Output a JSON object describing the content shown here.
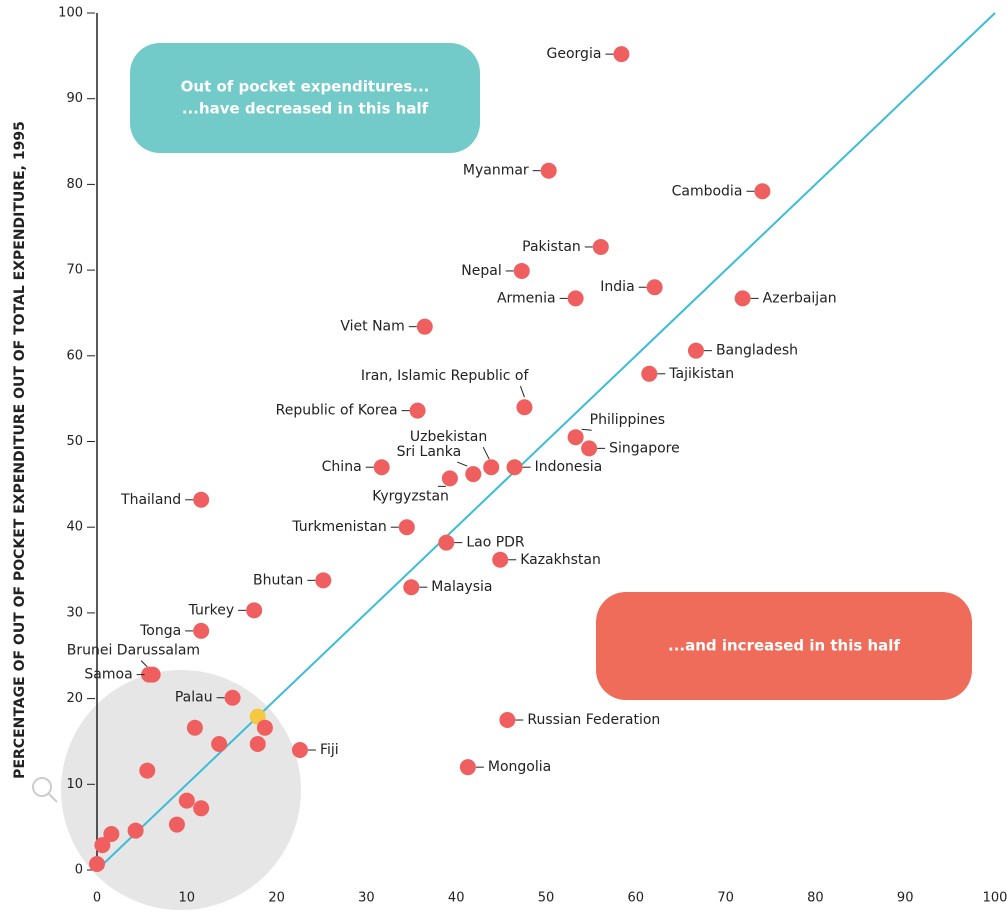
{
  "chart_data": {
    "type": "scatter",
    "ylabel": "PERCENTAGE OF OUT OF POCKET EXPENDITURE OUT OF TOTAL EXPENDITURE, 1995",
    "annotations": [
      {
        "lines": [
          "Out of pocket expenditures...",
          "...have decreased in this half"
        ],
        "color": "#72cbc9"
      },
      {
        "lines": [
          "...and increased in this half"
        ],
        "color": "#f06c5a"
      }
    ],
    "reference_line": {
      "x": [
        0,
        100
      ],
      "y": [
        0,
        100
      ],
      "color": "#3bbcd9"
    },
    "names": [
      "Georgia",
      "Myanmar",
      "Cambodia",
      "Pakistan",
      "Nepal",
      "India",
      "Armenia",
      "Azerbaijan",
      "Viet Nam",
      "Bangladesh",
      "Tajikistan",
      "Iran, Islamic Republic of",
      "Republic of Korea",
      "Philippines",
      "Singapore",
      "Uzbekistan",
      "Indonesia",
      "Sri Lanka",
      "Kyrgyzstan",
      "China",
      "Thailand",
      "Turkmenistan",
      "Lao PDR",
      "Kazakhstan",
      "Malaysia",
      "Bhutan",
      "Turkey",
      "Tonga",
      "Brunei Darussalam",
      "Samoa",
      "Palau",
      "Russian Federation",
      "Fiji",
      "Mongolia",
      null,
      null,
      null,
      null,
      null,
      null,
      null,
      null,
      null,
      null,
      null,
      null,
      null
    ],
    "x": [
      58.4,
      50.3,
      74.1,
      56.1,
      47.3,
      62.1,
      53.3,
      71.9,
      36.5,
      66.7,
      61.5,
      47.6,
      35.7,
      53.3,
      54.8,
      43.9,
      46.5,
      41.9,
      39.3,
      31.7,
      11.6,
      34.5,
      38.9,
      44.9,
      35.0,
      25.2,
      17.5,
      11.6,
      5.8,
      6.2,
      15.1,
      45.7,
      22.6,
      41.3,
      10.9,
      17.9,
      18.7,
      13.6,
      17.9,
      5.6,
      10.0,
      11.6,
      8.9,
      4.3,
      1.6,
      0.6,
      0
    ],
    "y": [
      95.2,
      81.6,
      79.2,
      72.7,
      69.9,
      68.0,
      66.7,
      66.7,
      63.4,
      60.6,
      57.9,
      54.0,
      53.6,
      50.5,
      49.2,
      47.0,
      47.0,
      46.2,
      45.7,
      47.0,
      43.2,
      40.0,
      38.2,
      36.2,
      33.0,
      33.8,
      30.3,
      27.9,
      22.8,
      22.8,
      20.1,
      17.5,
      14.0,
      12.0,
      16.6,
      17.9,
      16.6,
      14.7,
      14.7,
      11.6,
      8.1,
      7.2,
      5.3,
      4.6,
      4.2,
      2.9,
      0.7
    ],
    "colors": [
      "#ef5f5f",
      "#ef5f5f",
      "#ef5f5f",
      "#ef5f5f",
      "#ef5f5f",
      "#ef5f5f",
      "#ef5f5f",
      "#ef5f5f",
      "#ef5f5f",
      "#ef5f5f",
      "#ef5f5f",
      "#ef5f5f",
      "#ef5f5f",
      "#ef5f5f",
      "#ef5f5f",
      "#ef5f5f",
      "#ef5f5f",
      "#ef5f5f",
      "#ef5f5f",
      "#ef5f5f",
      "#ef5f5f",
      "#ef5f5f",
      "#ef5f5f",
      "#ef5f5f",
      "#ef5f5f",
      "#ef5f5f",
      "#ef5f5f",
      "#ef5f5f",
      "#ef5f5f",
      "#ef5f5f",
      "#ef5f5f",
      "#ef5f5f",
      "#ef5f5f",
      "#ef5f5f",
      "#ef5f5f",
      "#f5c842",
      "#ef5f5f",
      "#ef5f5f",
      "#ef5f5f",
      "#ef5f5f",
      "#ef5f5f",
      "#ef5f5f",
      "#ef5f5f",
      "#ef5f5f",
      "#ef5f5f",
      "#ef5f5f",
      "#ef5f5f"
    ],
    "xlim": [
      0,
      100
    ],
    "ylim": [
      0,
      100
    ],
    "xticks": [
      0,
      10,
      20,
      30,
      40,
      50,
      60,
      70,
      80,
      90,
      100
    ],
    "yticks": [
      0,
      10,
      20,
      30,
      40,
      50,
      60,
      70,
      80,
      90,
      100
    ]
  }
}
